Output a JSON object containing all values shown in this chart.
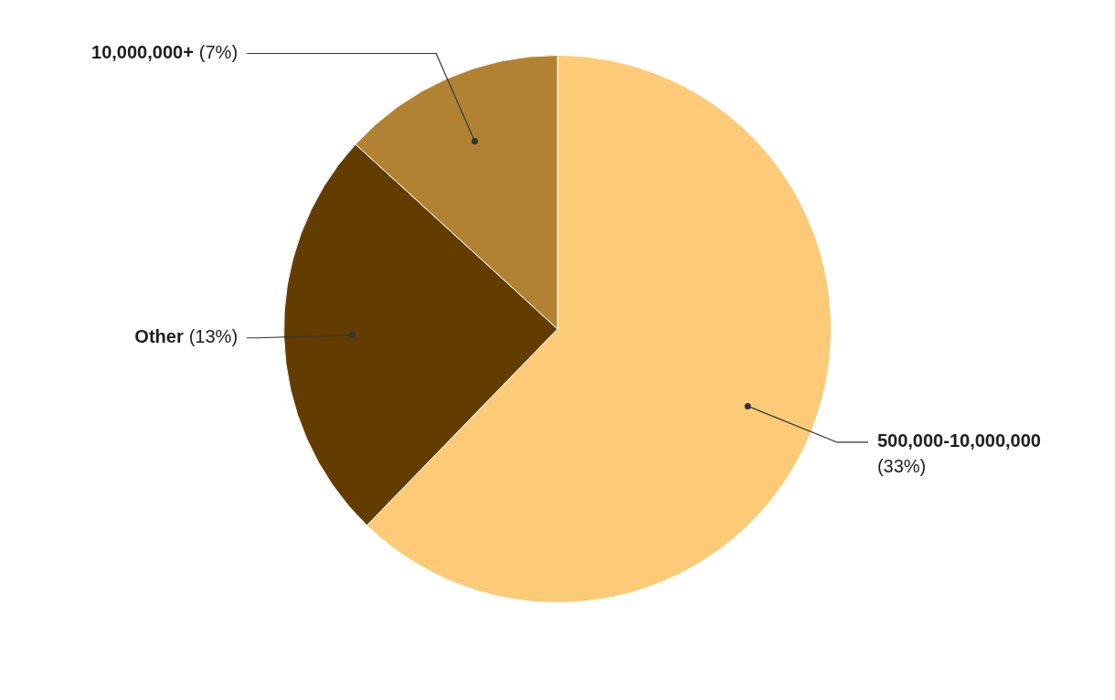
{
  "chart_data": {
    "type": "pie",
    "categories": [
      "500,000-10,000,000",
      "Other",
      "10,000,000+"
    ],
    "values": [
      33,
      13,
      7
    ],
    "colors": [
      "#fdca78",
      "#633d00",
      "#b08232"
    ],
    "value_labels": [
      "(33%)",
      "(13%)",
      "(7%)"
    ],
    "legend": false
  }
}
